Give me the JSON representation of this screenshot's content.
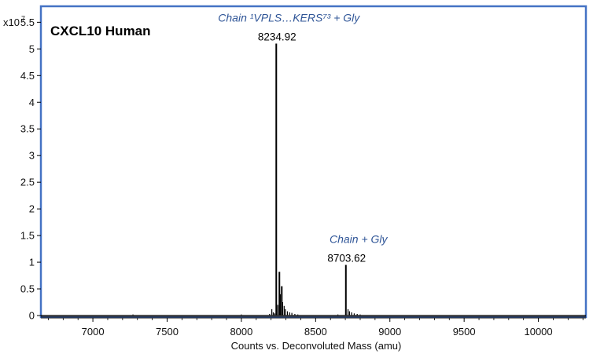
{
  "chart_data": {
    "type": "line",
    "title": "CXCL10  Human",
    "xlabel": "Counts vs. Deconvoluted Mass (amu)",
    "ylabel": "",
    "y_scale_label": "x10",
    "y_scale_exponent": "7",
    "xlim": [
      6650,
      10320
    ],
    "ylim": [
      0,
      5.8
    ],
    "x_ticks": [
      "7000",
      "7500",
      "8000",
      "8500",
      "9000",
      "9500",
      "10000"
    ],
    "y_ticks": [
      "0",
      "0.5",
      "1",
      "1.5",
      "2",
      "2.5",
      "3",
      "3.5",
      "4",
      "4.5",
      "5",
      "5.5"
    ],
    "grid": false,
    "series": [
      {
        "values": [
          {
            "x": 7270,
            "y": 0.02
          },
          {
            "x": 8000,
            "y": 0.02
          },
          {
            "x": 8190,
            "y": 0.03
          },
          {
            "x": 8205,
            "y": 0.12
          },
          {
            "x": 8215,
            "y": 0.06
          },
          {
            "x": 8225,
            "y": 0.04
          },
          {
            "x": 8234.92,
            "y": 5.1
          },
          {
            "x": 8245,
            "y": 0.2
          },
          {
            "x": 8256,
            "y": 0.82
          },
          {
            "x": 8262,
            "y": 0.4
          },
          {
            "x": 8272,
            "y": 0.55
          },
          {
            "x": 8278,
            "y": 0.25
          },
          {
            "x": 8288,
            "y": 0.18
          },
          {
            "x": 8296,
            "y": 0.12
          },
          {
            "x": 8310,
            "y": 0.08
          },
          {
            "x": 8325,
            "y": 0.06
          },
          {
            "x": 8340,
            "y": 0.05
          },
          {
            "x": 8360,
            "y": 0.03
          },
          {
            "x": 8380,
            "y": 0.02
          },
          {
            "x": 8650,
            "y": 0.02
          },
          {
            "x": 8703.62,
            "y": 0.95
          },
          {
            "x": 8718,
            "y": 0.12
          },
          {
            "x": 8728,
            "y": 0.08
          },
          {
            "x": 8742,
            "y": 0.06
          },
          {
            "x": 8760,
            "y": 0.04
          },
          {
            "x": 8780,
            "y": 0.03
          },
          {
            "x": 8800,
            "y": 0.02
          }
        ]
      }
    ],
    "peak_labels": [
      {
        "x": 8234.92,
        "text": "8234.92",
        "annotation": "Chain ¹VPLS…KERS⁷³ + Gly"
      },
      {
        "x": 8703.62,
        "text": "8703.62",
        "annotation": "Chain + Gly"
      }
    ],
    "annotation_color": "#2f5597",
    "frame_color": "#4472c4",
    "trace_color": "#000000"
  }
}
